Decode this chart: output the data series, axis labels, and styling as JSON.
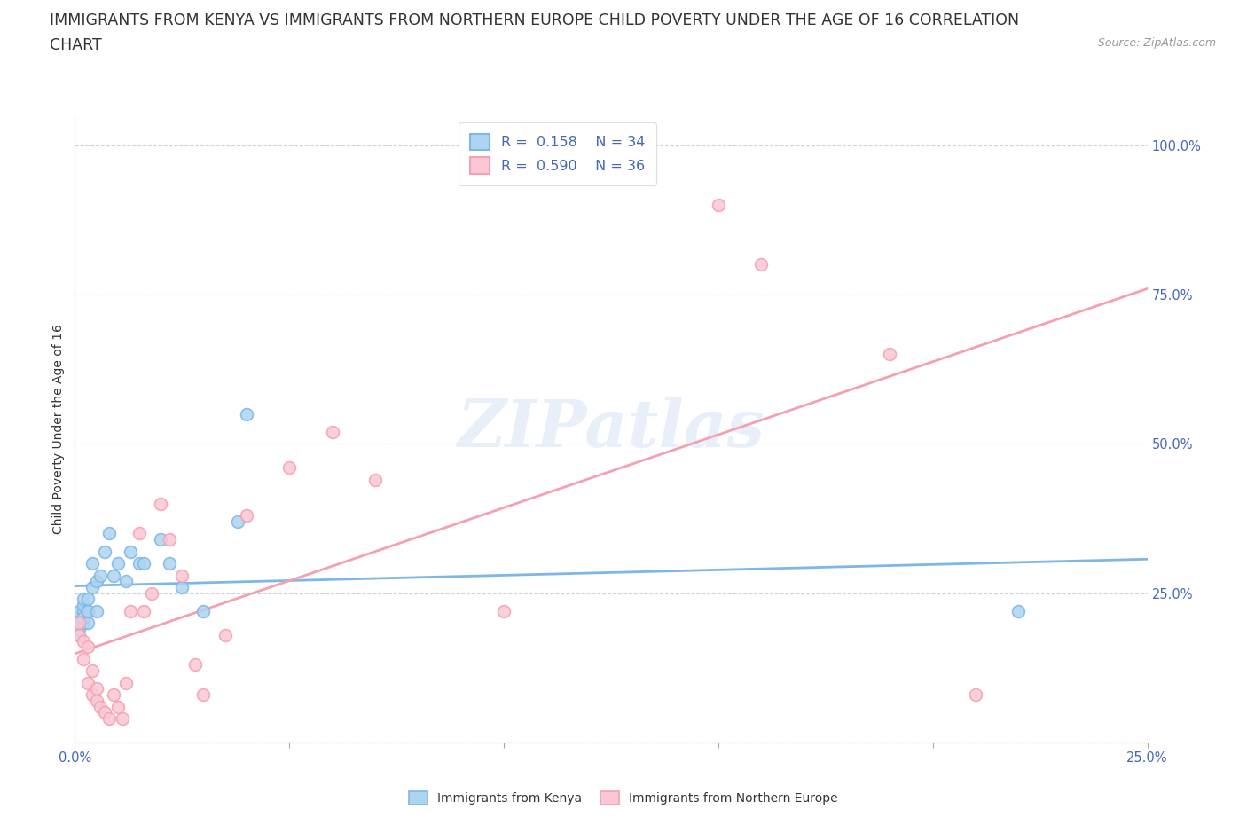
{
  "title_line1": "IMMIGRANTS FROM KENYA VS IMMIGRANTS FROM NORTHERN EUROPE CHILD POVERTY UNDER THE AGE OF 16 CORRELATION",
  "title_line2": "CHART",
  "source_text": "Source: ZipAtlas.com",
  "ylabel": "Child Poverty Under the Age of 16",
  "xlim": [
    0.0,
    0.25
  ],
  "ylim": [
    0.0,
    1.05
  ],
  "xticks": [
    0.0,
    0.05,
    0.1,
    0.15,
    0.2,
    0.25
  ],
  "yticks": [
    0.0,
    0.25,
    0.5,
    0.75,
    1.0
  ],
  "xtick_labels": [
    "0.0%",
    "",
    "",
    "",
    "",
    "25.0%"
  ],
  "ytick_labels": [
    "",
    "25.0%",
    "50.0%",
    "75.0%",
    "100.0%"
  ],
  "kenya_color": "#7EB6E8",
  "kenya_color_fill": "#AED4F0",
  "northern_color": "#F4A0B0",
  "northern_color_fill": "#F9C8D4",
  "kenya_R": 0.158,
  "kenya_N": 34,
  "northern_R": 0.59,
  "northern_N": 36,
  "watermark": "ZIPatlas",
  "kenya_x": [
    0.001,
    0.001,
    0.001,
    0.001,
    0.001,
    0.002,
    0.002,
    0.002,
    0.002,
    0.002,
    0.003,
    0.003,
    0.003,
    0.003,
    0.004,
    0.004,
    0.005,
    0.005,
    0.006,
    0.007,
    0.008,
    0.009,
    0.01,
    0.012,
    0.013,
    0.015,
    0.016,
    0.02,
    0.022,
    0.025,
    0.03,
    0.038,
    0.04,
    0.22
  ],
  "kenya_y": [
    0.2,
    0.21,
    0.22,
    0.18,
    0.19,
    0.22,
    0.23,
    0.24,
    0.2,
    0.21,
    0.22,
    0.24,
    0.2,
    0.22,
    0.26,
    0.3,
    0.27,
    0.22,
    0.28,
    0.32,
    0.35,
    0.28,
    0.3,
    0.27,
    0.32,
    0.3,
    0.3,
    0.34,
    0.3,
    0.26,
    0.22,
    0.37,
    0.55,
    0.22
  ],
  "northern_x": [
    0.001,
    0.001,
    0.002,
    0.002,
    0.003,
    0.003,
    0.004,
    0.004,
    0.005,
    0.005,
    0.006,
    0.007,
    0.008,
    0.009,
    0.01,
    0.011,
    0.012,
    0.013,
    0.015,
    0.016,
    0.018,
    0.02,
    0.022,
    0.025,
    0.028,
    0.03,
    0.035,
    0.04,
    0.05,
    0.06,
    0.07,
    0.1,
    0.15,
    0.16,
    0.19,
    0.21
  ],
  "northern_y": [
    0.2,
    0.18,
    0.17,
    0.14,
    0.16,
    0.1,
    0.12,
    0.08,
    0.09,
    0.07,
    0.06,
    0.05,
    0.04,
    0.08,
    0.06,
    0.04,
    0.1,
    0.22,
    0.35,
    0.22,
    0.25,
    0.4,
    0.34,
    0.28,
    0.13,
    0.08,
    0.18,
    0.38,
    0.46,
    0.52,
    0.44,
    0.22,
    0.9,
    0.8,
    0.65,
    0.08
  ],
  "grid_color": "#CCCCCC",
  "background_color": "#FFFFFF",
  "title_fontsize": 12.5,
  "axis_label_fontsize": 10,
  "tick_fontsize": 10.5,
  "legend_fontsize": 11.5,
  "blue_text_color": "#4466BB",
  "dark_text_color": "#333333",
  "source_color": "#999999"
}
